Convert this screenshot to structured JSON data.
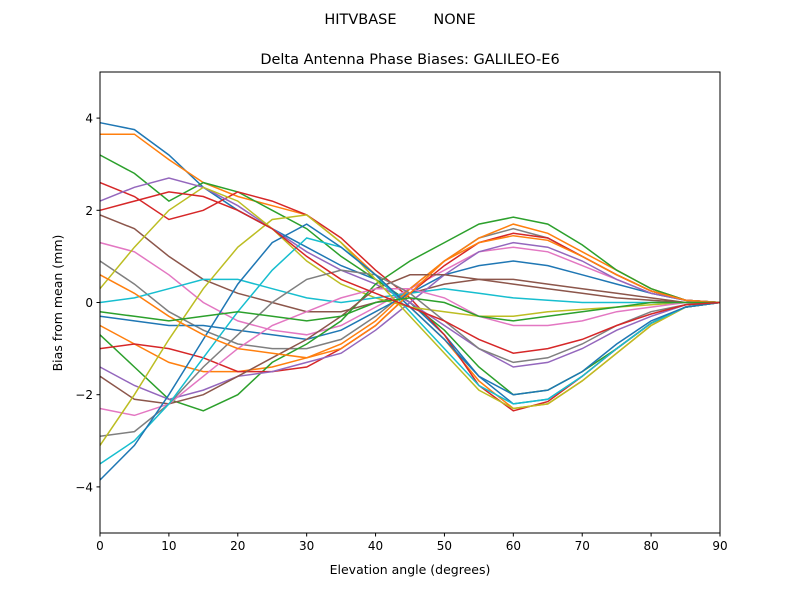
{
  "chart_data": {
    "type": "line",
    "suptitle": "HITVBASE        NONE",
    "title": "Delta Antenna Phase Biases: GALILEO-E6",
    "xlabel": "Elevation angle (degrees)",
    "ylabel": "Bias from mean (mm)",
    "xlim": [
      0,
      90
    ],
    "ylim": [
      -5,
      5
    ],
    "xticks": [
      0,
      10,
      20,
      30,
      40,
      50,
      60,
      70,
      80,
      90
    ],
    "yticks": [
      -4,
      -2,
      0,
      2,
      4
    ],
    "ytick_labels": [
      "−4",
      "−2",
      "0",
      "2",
      "4"
    ],
    "grid": false,
    "colors": [
      "#1f77b4",
      "#ff7f0e",
      "#2ca02c",
      "#d62728",
      "#9467bd",
      "#8c564b",
      "#e377c2",
      "#7f7f7f",
      "#bcbd22",
      "#17becf"
    ],
    "x": [
      0,
      5,
      10,
      15,
      20,
      25,
      30,
      35,
      40,
      45,
      50,
      55,
      60,
      65,
      70,
      75,
      80,
      85,
      90
    ],
    "series": [
      {
        "values": [
          3.9,
          3.75,
          3.2,
          2.5,
          2.0,
          1.6,
          1.2,
          0.8,
          0.5,
          0.0,
          -0.7,
          -1.6,
          -2.2,
          -2.1,
          -1.6,
          -1.0,
          -0.45,
          -0.1,
          0
        ]
      },
      {
        "values": [
          3.65,
          3.65,
          3.1,
          2.6,
          2.3,
          2.1,
          1.9,
          1.3,
          0.6,
          -0.1,
          -0.8,
          -1.7,
          -2.3,
          -2.2,
          -1.7,
          -1.1,
          -0.5,
          -0.1,
          0
        ]
      },
      {
        "values": [
          3.2,
          2.8,
          2.2,
          2.6,
          2.4,
          2.0,
          1.6,
          1.0,
          0.5,
          0.0,
          -0.6,
          -1.4,
          -2.0,
          -1.9,
          -1.5,
          -1.0,
          -0.45,
          -0.1,
          0
        ]
      },
      {
        "values": [
          2.6,
          2.3,
          1.8,
          2.0,
          2.4,
          2.2,
          1.9,
          1.4,
          0.7,
          0.1,
          -0.7,
          -1.8,
          -2.35,
          -2.15,
          -1.6,
          -1.0,
          -0.45,
          -0.1,
          0
        ]
      },
      {
        "values": [
          2.2,
          2.5,
          2.7,
          2.5,
          2.1,
          1.6,
          1.1,
          0.7,
          0.4,
          0.0,
          -0.5,
          -1.0,
          -1.4,
          -1.3,
          -1.0,
          -0.6,
          -0.3,
          -0.05,
          0
        ]
      },
      {
        "values": [
          1.9,
          1.6,
          1.0,
          0.5,
          0.2,
          0.0,
          -0.2,
          -0.2,
          0.0,
          0.2,
          0.4,
          0.5,
          0.5,
          0.4,
          0.3,
          0.2,
          0.1,
          0.0,
          0
        ]
      },
      {
        "values": [
          1.3,
          1.1,
          0.6,
          0.0,
          -0.4,
          -0.6,
          -0.7,
          -0.5,
          -0.1,
          0.3,
          0.7,
          1.1,
          1.2,
          1.1,
          0.8,
          0.5,
          0.2,
          0.05,
          0
        ]
      },
      {
        "values": [
          0.9,
          0.4,
          -0.2,
          -0.6,
          -0.9,
          -1.0,
          -1.0,
          -0.8,
          -0.3,
          0.3,
          0.9,
          1.4,
          1.6,
          1.4,
          1.0,
          0.6,
          0.25,
          0.05,
          0
        ]
      },
      {
        "values": [
          0.3,
          1.2,
          2.0,
          2.5,
          2.2,
          1.6,
          0.9,
          0.4,
          0.1,
          -0.1,
          -0.2,
          -0.3,
          -0.3,
          -0.2,
          -0.15,
          -0.1,
          -0.05,
          0,
          0
        ]
      },
      {
        "values": [
          0.0,
          0.1,
          0.3,
          0.5,
          0.5,
          0.3,
          0.1,
          0.0,
          0.1,
          0.2,
          0.3,
          0.2,
          0.1,
          0.05,
          0.0,
          0,
          0,
          0,
          0
        ]
      },
      {
        "values": [
          -0.3,
          -0.4,
          -0.5,
          -0.5,
          -0.6,
          -0.7,
          -0.8,
          -0.6,
          -0.2,
          0.2,
          0.6,
          0.8,
          0.9,
          0.8,
          0.6,
          0.4,
          0.2,
          0.05,
          0
        ]
      },
      {
        "values": [
          -0.5,
          -0.9,
          -1.3,
          -1.5,
          -1.5,
          -1.4,
          -1.2,
          -0.9,
          -0.4,
          0.3,
          0.9,
          1.4,
          1.7,
          1.5,
          1.1,
          0.7,
          0.3,
          0.05,
          0
        ]
      },
      {
        "values": [
          -0.7,
          -1.4,
          -2.1,
          -2.35,
          -2.0,
          -1.3,
          -0.9,
          -0.4,
          0.4,
          0.9,
          1.3,
          1.7,
          1.85,
          1.7,
          1.25,
          0.7,
          0.3,
          0.05,
          0
        ]
      },
      {
        "values": [
          -1.0,
          -0.9,
          -1.0,
          -1.2,
          -1.5,
          -1.5,
          -1.4,
          -1.0,
          -0.5,
          0.2,
          0.8,
          1.3,
          1.5,
          1.4,
          1.0,
          0.6,
          0.25,
          0.05,
          0
        ]
      },
      {
        "values": [
          -1.4,
          -1.8,
          -2.1,
          -1.9,
          -1.6,
          -1.5,
          -1.3,
          -1.1,
          -0.6,
          0.0,
          0.6,
          1.1,
          1.3,
          1.2,
          0.9,
          0.5,
          0.2,
          0.05,
          0
        ]
      },
      {
        "values": [
          -1.6,
          -2.1,
          -2.2,
          -2.0,
          -1.6,
          -1.2,
          -0.8,
          -0.3,
          0.3,
          0.6,
          0.6,
          0.5,
          0.4,
          0.3,
          0.2,
          0.1,
          0.05,
          0,
          0
        ]
      },
      {
        "values": [
          -2.3,
          -2.45,
          -2.2,
          -1.6,
          -1.0,
          -0.5,
          -0.2,
          0.1,
          0.3,
          0.3,
          0.1,
          -0.3,
          -0.5,
          -0.5,
          -0.4,
          -0.2,
          -0.1,
          0,
          0
        ]
      },
      {
        "values": [
          -2.9,
          -2.8,
          -2.2,
          -1.4,
          -0.7,
          0.0,
          0.5,
          0.7,
          0.6,
          0.2,
          -0.4,
          -1.0,
          -1.3,
          -1.2,
          -0.9,
          -0.5,
          -0.2,
          -0.05,
          0
        ]
      },
      {
        "values": [
          -3.1,
          -2.0,
          -0.8,
          0.3,
          1.2,
          1.8,
          1.9,
          1.3,
          0.5,
          -0.3,
          -1.1,
          -1.9,
          -2.3,
          -2.2,
          -1.7,
          -1.1,
          -0.5,
          -0.1,
          0
        ]
      },
      {
        "values": [
          -3.5,
          -3.0,
          -2.2,
          -1.2,
          -0.2,
          0.7,
          1.4,
          1.2,
          0.6,
          -0.2,
          -1.0,
          -1.8,
          -2.2,
          -2.1,
          -1.6,
          -1.0,
          -0.45,
          -0.1,
          0
        ]
      },
      {
        "values": [
          -3.85,
          -3.1,
          -2.0,
          -0.8,
          0.4,
          1.3,
          1.7,
          1.2,
          0.6,
          -0.1,
          -0.8,
          -1.6,
          -2.0,
          -1.9,
          -1.5,
          -0.9,
          -0.4,
          -0.1,
          0
        ]
      },
      {
        "values": [
          0.6,
          0.2,
          -0.3,
          -0.7,
          -1.0,
          -1.1,
          -1.2,
          -1.0,
          -0.5,
          0.2,
          0.9,
          1.3,
          1.45,
          1.35,
          1.0,
          0.6,
          0.25,
          0.05,
          0
        ]
      },
      {
        "values": [
          -0.2,
          -0.3,
          -0.4,
          -0.3,
          -0.2,
          -0.3,
          -0.4,
          -0.3,
          0.0,
          0.1,
          0.0,
          -0.3,
          -0.4,
          -0.3,
          -0.2,
          -0.1,
          0,
          0,
          0
        ]
      },
      {
        "values": [
          2.0,
          2.2,
          2.4,
          2.3,
          2.0,
          1.6,
          1.0,
          0.5,
          0.2,
          -0.1,
          -0.4,
          -0.8,
          -1.1,
          -1.0,
          -0.8,
          -0.5,
          -0.25,
          -0.05,
          0
        ]
      }
    ]
  }
}
